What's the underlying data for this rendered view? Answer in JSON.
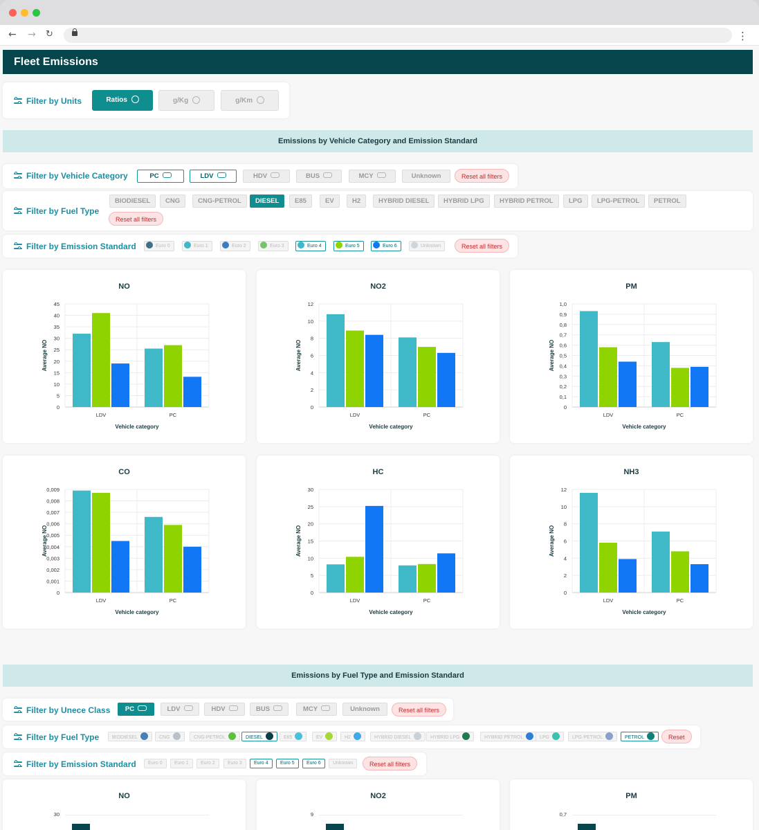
{
  "page": {
    "title": "Fleet Emissions"
  },
  "colors": {
    "euro4": "#3fb8c8",
    "euro5": "#8fd400",
    "euro6": "#1177f5",
    "dark": "#06454b",
    "band": "#cfe9ea"
  },
  "units": {
    "label": "Filter by Units",
    "buttons": [
      {
        "label": "Ratios",
        "active": true
      },
      {
        "label": "g/Kg",
        "active": false
      },
      {
        "label": "g/Km",
        "active": false
      }
    ]
  },
  "section1": {
    "title": "Emissions by Vehicle Category and Emission Standard",
    "vehicle_filter": {
      "label": "Filter by Vehicle Category",
      "chips": [
        {
          "label": "PC",
          "icon": "car-icon",
          "state": "sel"
        },
        {
          "label": "LDV",
          "icon": "van-icon",
          "state": "sel"
        },
        {
          "label": "HDV",
          "icon": "truck-icon",
          "state": "off"
        },
        {
          "label": "BUS",
          "icon": "bus-icon",
          "state": "off"
        },
        {
          "label": "MCY",
          "icon": "motorcycle-icon",
          "state": "off"
        },
        {
          "label": "Unknown",
          "icon": "",
          "state": "off"
        }
      ],
      "reset": "Reset all filters"
    },
    "fuel_filter": {
      "label": "Filter by Fuel Type",
      "chips": [
        "BIODIESEL",
        "CNG",
        "CNG-PETROL",
        "DIESEL",
        "E85",
        "EV",
        "H2",
        "HYBRID DIESEL",
        "HYBRID LPG",
        "HYBRID PETROL",
        "LPG",
        "LPG-PETROL",
        "PETROL"
      ],
      "active": "DIESEL",
      "reset": "Reset all filters"
    },
    "emission_filter": {
      "label": "Filter by Emission Standard",
      "pills": [
        {
          "label": "Euro 0",
          "color": "#3f6f8a",
          "sel": false
        },
        {
          "label": "Euro 1",
          "color": "#3fb8c8",
          "sel": false
        },
        {
          "label": "Euro 2",
          "color": "#3b7bc0",
          "sel": false
        },
        {
          "label": "Euro 3",
          "color": "#76c46a",
          "sel": false
        },
        {
          "label": "Euro 4",
          "color": "#3fb8c8",
          "sel": true
        },
        {
          "label": "Euro 5",
          "color": "#8fd400",
          "sel": true
        },
        {
          "label": "Euro 6",
          "color": "#1177f5",
          "sel": true
        },
        {
          "label": "Unknown",
          "color": "#cfd6db",
          "sel": false
        }
      ],
      "reset": "Reset all filters"
    }
  },
  "chart_data": [
    {
      "type": "bar",
      "title": "NO",
      "categories": [
        "LDV",
        "PC"
      ],
      "series": [
        {
          "values": [
            32,
            25.5
          ]
        },
        {
          "values": [
            41,
            27
          ]
        },
        {
          "values": [
            19,
            13.2
          ]
        }
      ],
      "xlabel": "Vehicle category",
      "ylabel": "Average NO",
      "ylim": [
        0,
        45
      ],
      "ticks": [
        "0",
        "5",
        "10",
        "15",
        "20",
        "25",
        "30",
        "35",
        "40",
        "45"
      ]
    },
    {
      "type": "bar",
      "title": "NO2",
      "categories": [
        "LDV",
        "PC"
      ],
      "series": [
        {
          "values": [
            10.8,
            8.1
          ]
        },
        {
          "values": [
            8.9,
            7.0
          ]
        },
        {
          "values": [
            8.4,
            6.3
          ]
        }
      ],
      "xlabel": "Vehicle category",
      "ylabel": "Average NO",
      "ylim": [
        0,
        12
      ],
      "ticks": [
        "0",
        "2",
        "4",
        "6",
        "8",
        "10",
        "12"
      ]
    },
    {
      "type": "bar",
      "title": "PM",
      "categories": [
        "LDV",
        "PC"
      ],
      "series": [
        {
          "values": [
            0.93,
            0.63
          ]
        },
        {
          "values": [
            0.58,
            0.38
          ]
        },
        {
          "values": [
            0.44,
            0.39
          ]
        }
      ],
      "xlabel": "Vehicle category",
      "ylabel": "Average NO",
      "ylim": [
        0,
        1.0
      ],
      "ticks": [
        "0",
        "0,1",
        "0,2",
        "0,3",
        "0,4",
        "0,5",
        "0,6",
        "0,7",
        "0,8",
        "0,9",
        "1,0"
      ]
    },
    {
      "type": "bar",
      "title": "CO",
      "categories": [
        "LDV",
        "PC"
      ],
      "series": [
        {
          "values": [
            0.0089,
            0.0066
          ]
        },
        {
          "values": [
            0.0087,
            0.0059
          ]
        },
        {
          "values": [
            0.0045,
            0.004
          ]
        }
      ],
      "xlabel": "Vehicle category",
      "ylabel": "Average NO",
      "ylim": [
        0,
        0.009
      ],
      "ticks": [
        "0",
        "0,001",
        "0,002",
        "0,003",
        "0,004",
        "0,005",
        "0,006",
        "0,007",
        "0,008",
        "0,009"
      ]
    },
    {
      "type": "bar",
      "title": "HC",
      "categories": [
        "LDV",
        "PC"
      ],
      "series": [
        {
          "values": [
            8.2,
            7.9
          ]
        },
        {
          "values": [
            10.4,
            8.3
          ]
        },
        {
          "values": [
            25.2,
            11.4
          ]
        }
      ],
      "xlabel": "Vehicle category",
      "ylabel": "Average NO",
      "ylim": [
        0,
        30
      ],
      "ticks": [
        "0",
        "5",
        "10",
        "15",
        "20",
        "25",
        "30"
      ]
    },
    {
      "type": "bar",
      "title": "NH3",
      "categories": [
        "LDV",
        "PC"
      ],
      "series": [
        {
          "values": [
            11.6,
            7.1
          ]
        },
        {
          "values": [
            5.8,
            4.8
          ]
        },
        {
          "values": [
            3.9,
            3.3
          ]
        }
      ],
      "xlabel": "Vehicle category",
      "ylabel": "Average NO",
      "ylim": [
        0,
        12
      ],
      "ticks": [
        "0",
        "2",
        "4",
        "6",
        "8",
        "10",
        "12"
      ]
    }
  ],
  "section2": {
    "title": "Emissions by Fuel Type and Emission Standard",
    "class_filter": {
      "label": "Filter by Unece Class",
      "chips": [
        {
          "label": "PC",
          "icon": "car-icon",
          "state": "on"
        },
        {
          "label": "LDV",
          "icon": "van-icon",
          "state": "off"
        },
        {
          "label": "HDV",
          "icon": "truck-icon",
          "state": "off"
        },
        {
          "label": "BUS",
          "icon": "bus-icon",
          "state": "off"
        },
        {
          "label": "MCY",
          "icon": "motorcycle-icon",
          "state": "off"
        },
        {
          "label": "Unknown",
          "icon": "",
          "state": "off"
        }
      ],
      "reset": "Reset all filters"
    },
    "fuel_filter": {
      "label": "Filter by Fuel Type",
      "chips": [
        {
          "label": "BIODIESEL",
          "color": "#4a7fb5",
          "sel": false
        },
        {
          "label": "CNG",
          "color": "#b8c1c9",
          "sel": false
        },
        {
          "label": "CNG-PETROL",
          "color": "#5fbf3f",
          "sel": false
        },
        {
          "label": "DIESEL",
          "color": "#0b3f47",
          "sel": true
        },
        {
          "label": "E85",
          "color": "#49c2d8",
          "sel": false
        },
        {
          "label": "EV",
          "color": "#a6d83a",
          "sel": false
        },
        {
          "label": "H2",
          "color": "#41a8e6",
          "sel": false
        },
        {
          "label": "HYBRID DIESEL",
          "color": "#c9d0d6",
          "sel": false
        },
        {
          "label": "HYBRID LPG",
          "color": "#1f7a4f",
          "sel": false
        },
        {
          "label": "HYBRID PETROL",
          "color": "#2f7fd6",
          "sel": false
        },
        {
          "label": "LPG",
          "color": "#3cc0b0",
          "sel": false
        },
        {
          "label": "LPG-PETROL",
          "color": "#8aa0c8",
          "sel": false
        },
        {
          "label": "PETROL",
          "color": "#0f7f7a",
          "sel": true
        }
      ],
      "reset": "Reset"
    },
    "emission_filter": {
      "label": "Filter by Emission Standard",
      "chips": [
        {
          "label": "Euro 0",
          "sel": false
        },
        {
          "label": "Euro 1",
          "sel": false
        },
        {
          "label": "Euro 2",
          "sel": false
        },
        {
          "label": "Euro 3",
          "sel": false
        },
        {
          "label": "Euro 4",
          "sel": true
        },
        {
          "label": "Euro 5",
          "sel": true
        },
        {
          "label": "Euro 6",
          "sel": true
        },
        {
          "label": "Unknown",
          "sel": false
        }
      ],
      "reset": "Reset all filters"
    },
    "preview_charts": [
      {
        "title": "NO",
        "top_tick": "30"
      },
      {
        "title": "NO2",
        "top_tick": "9"
      },
      {
        "title": "PM",
        "top_tick": "0,7"
      }
    ]
  }
}
